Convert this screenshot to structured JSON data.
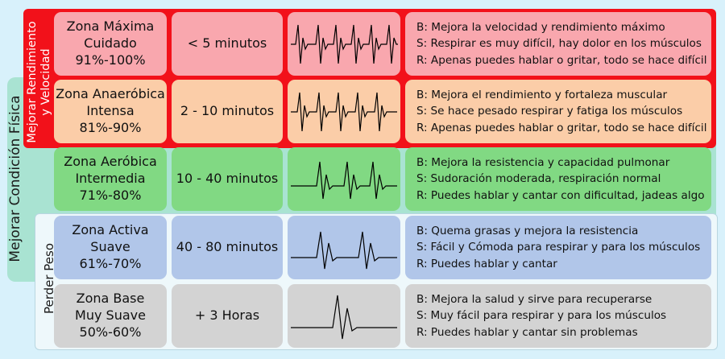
{
  "groups": {
    "fisica": "Mejorar Condición Física",
    "rendimiento": [
      "Mejorar Rendimiento",
      "y Velocidad"
    ],
    "peso": "Perder Peso"
  },
  "zones": [
    {
      "name": [
        "Zona Máxima",
        "Cuidado",
        "91%-100%"
      ],
      "duration": "< 5 minutos",
      "lines": [
        "B: Mejora la velocidad y rendimiento máximo",
        "S: Respirar es muy difícil, hay dolor en los músculos",
        "R: Apenas puedes hablar o gritar, todo se hace difícil"
      ]
    },
    {
      "name": [
        "Zona Anaeróbica",
        "Intensa",
        "81%-90%"
      ],
      "duration": "2 - 10 minutos",
      "lines": [
        "B: Mejora el rendimiento y fortaleza muscular",
        "S: Se hace pesado respirar y fatiga los músculos",
        "R: Apenas puedes hablar o gritar, todo se hace difícil"
      ]
    },
    {
      "name": [
        "Zona Aeróbica",
        "Intermedia",
        "71%-80%"
      ],
      "duration": "10 - 40 minutos",
      "lines": [
        "B: Mejora la resistencia y capacidad pulmonar",
        "S: Sudoración moderada, respiración normal",
        "R: Puedes hablar y cantar con dificultad, jadeas algo"
      ]
    },
    {
      "name": [
        "Zona Activa",
        "Suave",
        "61%-70%"
      ],
      "duration": "40 - 80 minutos",
      "lines": [
        "B: Quema grasas y mejora la resistencia",
        "S: Fácil y Cómoda para respirar y para los músculos",
        "R: Puedes hablar y cantar"
      ]
    },
    {
      "name": [
        "Zona Base",
        "Muy Suave",
        "50%-60%"
      ],
      "duration": "+ 3 Horas",
      "lines": [
        "B: Mejora la salud y sirve para recuperarse",
        "S: Muy fácil para respirar y para los músculos",
        "R: Puedes hablar y cantar sin problemas"
      ]
    }
  ],
  "colors": {
    "zone_max": "#f9a7ae",
    "zone_anaerobic": "#fbcda8",
    "zone_aerobic": "#81d983",
    "zone_active": "#b1c6e9",
    "zone_base": "#d3d3d3",
    "band_rendimiento": "#f2111a",
    "band_fisica": "#a9e3d2"
  }
}
